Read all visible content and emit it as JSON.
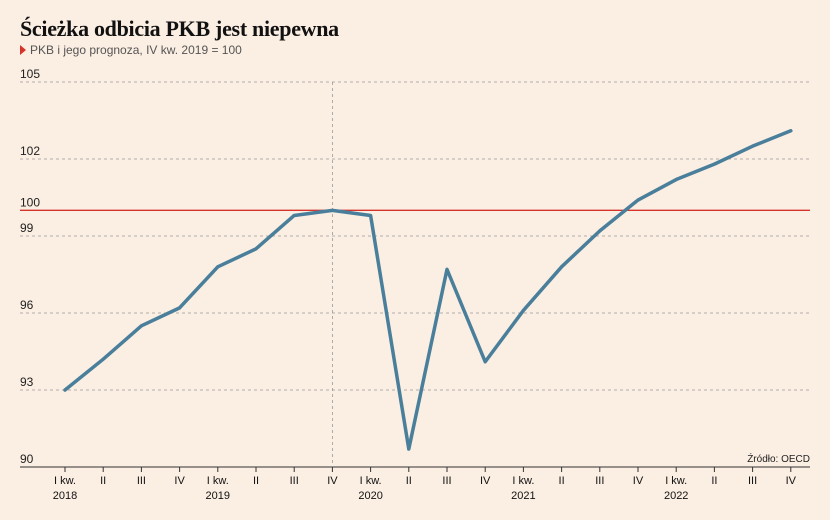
{
  "header": {
    "title": "Ścieżka odbicia PKB jest niepewna",
    "subtitle": "PKB i jego prognoza, IV kw. 2019 = 100",
    "source": "Źródło: OECD"
  },
  "colors": {
    "background": "#fbeee2",
    "line": "#4a7f9c",
    "reference": "#d6332b",
    "grid": "#9a9a9a"
  },
  "chart_data": {
    "type": "line",
    "title": "Ścieżka odbicia PKB jest niepewna",
    "subtitle": "PKB i jego prognoza, IV kw. 2019 = 100",
    "categories": [
      "I kw.",
      "II",
      "III",
      "IV",
      "I kw.",
      "II",
      "III",
      "IV",
      "I kw.",
      "II",
      "III",
      "IV",
      "I kw.",
      "II",
      "III",
      "IV",
      "I kw.",
      "II",
      "III",
      "IV"
    ],
    "years": [
      {
        "label": "2018",
        "index": 0
      },
      {
        "label": "2019",
        "index": 4
      },
      {
        "label": "2020",
        "index": 8
      },
      {
        "label": "2021",
        "index": 12
      },
      {
        "label": "2022",
        "index": 16
      }
    ],
    "values": [
      93.0,
      94.2,
      95.5,
      96.2,
      97.8,
      98.5,
      99.8,
      100.0,
      99.8,
      90.7,
      97.7,
      94.1,
      96.1,
      97.8,
      99.2,
      100.4,
      101.2,
      101.8,
      102.5,
      103.1
    ],
    "yticks": [
      90,
      93,
      96,
      99,
      100,
      102,
      105
    ],
    "ylim": [
      90,
      105
    ],
    "reference_line": 100,
    "vertical_marker_index": 7,
    "grid": true
  }
}
